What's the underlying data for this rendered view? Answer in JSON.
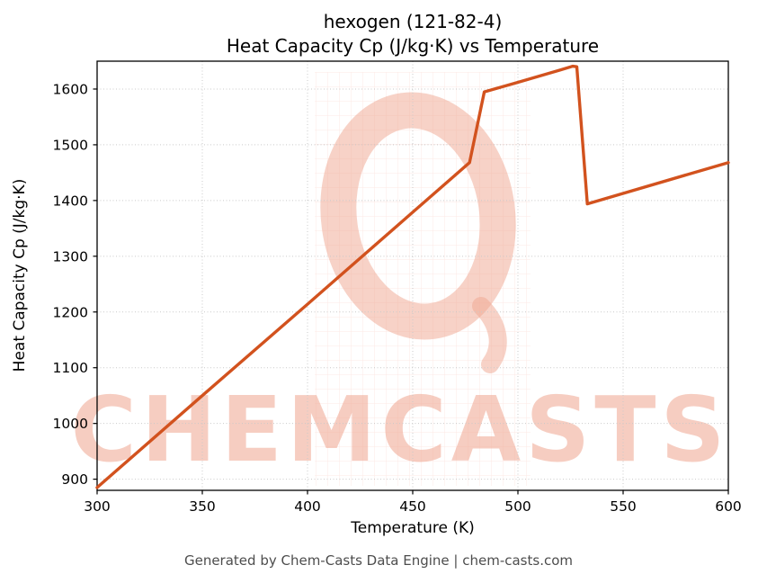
{
  "watermark": {
    "text": "CHEMCASTS",
    "color": "#f0a58f"
  },
  "footer": {
    "text": "Generated by Chem-Casts Data Engine | chem-casts.com"
  },
  "chart_data": {
    "type": "line",
    "title_line1": "hexogen (121-82-4)",
    "title_line2": "Heat Capacity Cp (J/kg·K) vs Temperature",
    "xlabel": "Temperature (K)",
    "ylabel": "Heat Capacity Cp (J/kg·K)",
    "xlim": [
      300,
      600
    ],
    "ylim": [
      880,
      1650
    ],
    "xticks": [
      300,
      350,
      400,
      450,
      500,
      550,
      600
    ],
    "yticks": [
      900,
      1000,
      1100,
      1200,
      1300,
      1400,
      1500,
      1600
    ],
    "grid": true,
    "legend": "none",
    "line_color": "#d2521e",
    "line_width": 3.4,
    "series": [
      {
        "name": "Heat Capacity Cp",
        "points": [
          [
            300,
            885
          ],
          [
            350,
            1050
          ],
          [
            400,
            1214
          ],
          [
            450,
            1379
          ],
          [
            477,
            1468
          ],
          [
            484,
            1595
          ],
          [
            500,
            1612
          ],
          [
            520,
            1634
          ],
          [
            526,
            1641
          ],
          [
            528,
            1640
          ],
          [
            533,
            1394
          ],
          [
            600,
            1468
          ]
        ]
      }
    ]
  }
}
